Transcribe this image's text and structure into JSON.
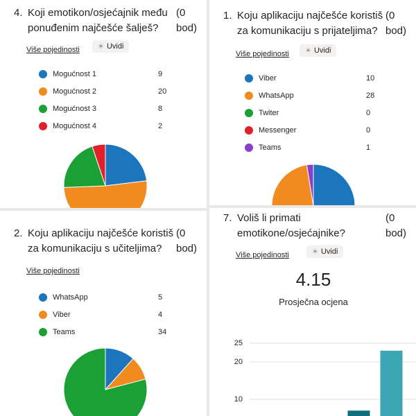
{
  "chart_data": [
    {
      "type": "pie",
      "number": "4.",
      "title": "Koji emotikon/osjećajnik među ponuđenim najčešće šalješ?",
      "points": "(0 bod)",
      "details": "Više pojedinosti",
      "insights": "Uvidi",
      "categories": [
        "Mogućnost 1",
        "Mogućnost 2",
        "Mogućnost 3",
        "Mogućnost 4"
      ],
      "values": [
        9,
        20,
        8,
        2
      ],
      "colors": [
        "#1b76bd",
        "#f18b1f",
        "#1aa035",
        "#e0202a"
      ]
    },
    {
      "type": "pie",
      "number": "1.",
      "title": "Koju aplikaciju najčešće koristiš za komunikaciju s prijateljima?",
      "points": "(0 bod)",
      "details": "Više pojedinosti",
      "insights": "Uvidi",
      "categories": [
        "Viber",
        "WhatsApp",
        "Twiter",
        "Messenger",
        "Teams"
      ],
      "values": [
        10,
        28,
        0,
        0,
        1
      ],
      "colors": [
        "#1b76bd",
        "#f18b1f",
        "#1aa035",
        "#e0202a",
        "#8b3fc8"
      ]
    },
    {
      "type": "pie",
      "number": "2.",
      "title": "Koju aplikaciju najčešće koristiš za komunikaciju s učiteljima?",
      "points": "(0 bod)",
      "details": "Više pojedinosti",
      "categories": [
        "WhatsApp",
        "Viber",
        "Teams"
      ],
      "values": [
        5,
        4,
        34
      ],
      "colors": [
        "#1b76bd",
        "#f18b1f",
        "#1aa035"
      ]
    },
    {
      "type": "bar",
      "number": "7.",
      "title": "Voliš li primati emotikone/osjećajnike?",
      "points": "(0 bod)",
      "details": "Više pojedinosti",
      "insights": "Uvidi",
      "average": 4.15,
      "average_label": "Prosječna ocjena",
      "categories": [
        null,
        null
      ],
      "values": [
        7,
        23
      ],
      "colors": [
        "#106e7d",
        "#3da6b5"
      ],
      "ylim": [
        0,
        25
      ],
      "yticks": [
        10,
        20,
        25
      ],
      "grid": true
    }
  ]
}
